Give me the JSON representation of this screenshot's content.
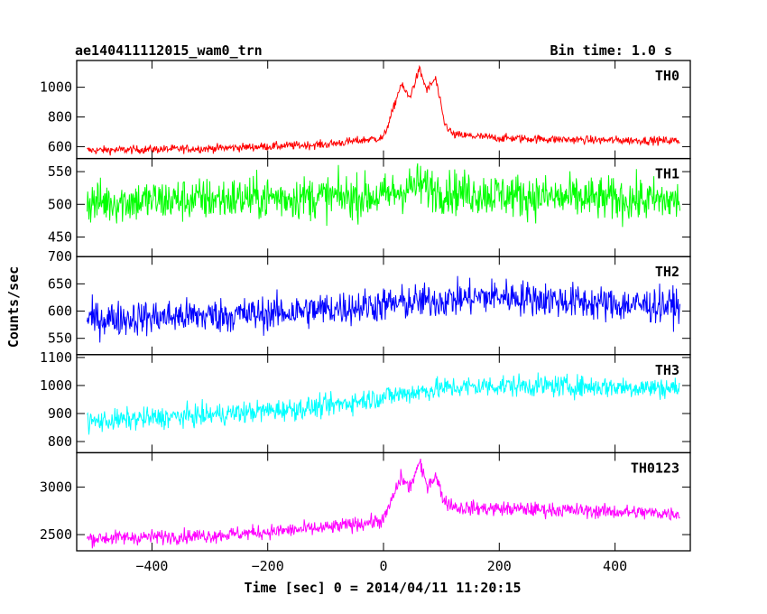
{
  "header": {
    "title": "ae140411112015_wam0_trn",
    "bin_time": "Bin time: 1.0 s"
  },
  "chart_data": {
    "type": "line",
    "xlabel": "Time [sec] 0 = 2014/04/11 11:20:15",
    "ylabel": "Counts/sec",
    "xlim": [
      -530,
      530
    ],
    "x_ticks": [
      -400,
      -200,
      0,
      200,
      400
    ],
    "x_tick_labels": [
      "−400",
      "−200",
      "0",
      "200",
      "400"
    ],
    "x_range": [
      -512,
      512
    ],
    "panels": [
      {
        "name": "TH0",
        "color": "#ff0000",
        "ylim": [
          520,
          1180
        ],
        "y_ticks": [
          600,
          800,
          1000
        ],
        "profile": [
          [
            -512,
            575
          ],
          [
            -300,
            588
          ],
          [
            -100,
            615
          ],
          [
            0,
            660
          ],
          [
            15,
            830
          ],
          [
            30,
            1020
          ],
          [
            45,
            930
          ],
          [
            62,
            1120
          ],
          [
            75,
            980
          ],
          [
            90,
            1060
          ],
          [
            105,
            760
          ],
          [
            120,
            680
          ],
          [
            200,
            658
          ],
          [
            350,
            645
          ],
          [
            512,
            640
          ]
        ],
        "noise": 20
      },
      {
        "name": "TH1",
        "color": "#00ff00",
        "ylim": [
          420,
          570
        ],
        "y_ticks": [
          450,
          500,
          550
        ],
        "profile": [
          [
            -512,
            503
          ],
          [
            -200,
            510
          ],
          [
            0,
            512
          ],
          [
            60,
            530
          ],
          [
            100,
            520
          ],
          [
            300,
            510
          ],
          [
            512,
            505
          ]
        ],
        "noise": 24
      },
      {
        "name": "TH2",
        "color": "#0000ff",
        "ylim": [
          520,
          700
        ],
        "y_ticks": [
          550,
          600,
          650,
          700
        ],
        "profile": [
          [
            -512,
            585
          ],
          [
            -200,
            595
          ],
          [
            0,
            612
          ],
          [
            100,
            620
          ],
          [
            200,
            628
          ],
          [
            400,
            612
          ],
          [
            512,
            610
          ]
        ],
        "noise": 23
      },
      {
        "name": "TH3",
        "color": "#00ffff",
        "ylim": [
          760,
          1110
        ],
        "y_ticks": [
          800,
          900,
          1000,
          1100
        ],
        "profile": [
          [
            -512,
            870
          ],
          [
            -300,
            895
          ],
          [
            -100,
            925
          ],
          [
            0,
            960
          ],
          [
            100,
            990
          ],
          [
            200,
            1000
          ],
          [
            400,
            995
          ],
          [
            512,
            990
          ]
        ],
        "noise": 28
      },
      {
        "name": "TH0123",
        "color": "#ff00ff",
        "ylim": [
          2330,
          3360
        ],
        "y_ticks": [
          2500,
          3000
        ],
        "profile": [
          [
            -512,
            2460
          ],
          [
            -300,
            2490
          ],
          [
            -100,
            2570
          ],
          [
            0,
            2650
          ],
          [
            15,
            2870
          ],
          [
            30,
            3100
          ],
          [
            45,
            2990
          ],
          [
            62,
            3250
          ],
          [
            75,
            3020
          ],
          [
            90,
            3120
          ],
          [
            105,
            2850
          ],
          [
            130,
            2780
          ],
          [
            300,
            2760
          ],
          [
            512,
            2720
          ]
        ],
        "noise": 55
      }
    ]
  }
}
